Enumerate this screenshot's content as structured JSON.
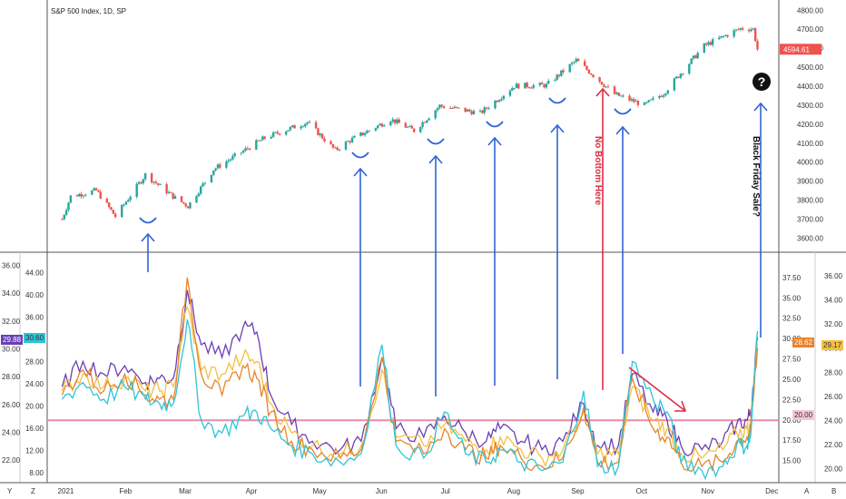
{
  "chart_data": [
    {
      "type": "candlestick",
      "title": "S&P 500 Index, 1D, SP",
      "y_ticks": [
        "4800.00",
        "4700.00",
        "4600.00",
        "4500.00",
        "4400.00",
        "4300.00",
        "4200.00",
        "4100.00",
        "4000.00",
        "3900.00",
        "3800.00",
        "3700.00",
        "3600.00"
      ],
      "ylim": [
        3540,
        4830
      ],
      "x_ticks": [
        "2021",
        "Feb",
        "Mar",
        "Apr",
        "May",
        "Jun",
        "Jul",
        "Aug",
        "Sep",
        "Oct",
        "Nov",
        "Dec"
      ],
      "last_price": "4594.61",
      "up_color": "#26a69a",
      "down_color": "#ef5350",
      "anchors": [
        [
          "2021-01-04",
          3700
        ],
        [
          "2021-01-08",
          3820
        ],
        [
          "2021-01-20",
          3851
        ],
        [
          "2021-01-29",
          3714
        ],
        [
          "2021-02-12",
          3934
        ],
        [
          "2021-02-26",
          3811
        ],
        [
          "2021-03-04",
          3768
        ],
        [
          "2021-03-16",
          3962
        ],
        [
          "2021-04-09",
          4128
        ],
        [
          "2021-04-29",
          4211
        ],
        [
          "2021-05-12",
          4063
        ],
        [
          "2021-05-19",
          4115
        ],
        [
          "2021-06-07",
          4226
        ],
        [
          "2021-06-18",
          4166
        ],
        [
          "2021-06-30",
          4297
        ],
        [
          "2021-07-19",
          4258
        ],
        [
          "2021-08-04",
          4402
        ],
        [
          "2021-08-19",
          4405
        ],
        [
          "2021-09-02",
          4536
        ],
        [
          "2021-09-10",
          4458
        ],
        [
          "2021-09-20",
          4358
        ],
        [
          "2021-10-04",
          4300
        ],
        [
          "2021-10-13",
          4363
        ],
        [
          "2021-11-01",
          4613
        ],
        [
          "2021-11-18",
          4704
        ],
        [
          "2021-11-24",
          4701
        ],
        [
          "2021-11-26",
          4594.61
        ]
      ]
    },
    {
      "type": "line",
      "title": "",
      "y_ticks_left_outer": [
        "36.00",
        "34.00",
        "32.00",
        "30.00",
        "28.00",
        "26.00",
        "24.00",
        "22.00"
      ],
      "y_ticks_left_inner": [
        "44.00",
        "40.00",
        "36.00",
        "32.00",
        "28.00",
        "24.00",
        "20.00",
        "16.00",
        "12.00",
        "8.00"
      ],
      "y_ticks_right_inner": [
        "37.50",
        "35.00",
        "32.50",
        "30.00",
        "27.50",
        "25.00",
        "22.50",
        "20.00",
        "17.50",
        "15.00"
      ],
      "y_ticks_right_outer": [
        "36.00",
        "34.00",
        "32.00",
        "30.00",
        "28.00",
        "26.00",
        "24.00",
        "22.00",
        "20.00"
      ],
      "ylim": [
        13,
        38.5
      ],
      "reference_line": 20,
      "reference_color": "#e88aa8",
      "value_tags": {
        "left_purple": "29.88",
        "left_teal": "30.60",
        "right_orange": "28.62",
        "right_yellow": "29.17",
        "right_ref": "20.00"
      },
      "series": [
        {
          "color": "#6a3fb5",
          "values": [
            [
              0,
              24
            ],
            [
              0.03,
              27
            ],
            [
              0.06,
              25.5
            ],
            [
              0.09,
              26.5
            ],
            [
              0.12,
              24.5
            ],
            [
              0.14,
              25
            ],
            [
              0.16,
              25
            ],
            [
              0.18,
              35.5
            ],
            [
              0.2,
              29
            ],
            [
              0.23,
              27.5
            ],
            [
              0.26,
              31
            ],
            [
              0.28,
              30.5
            ],
            [
              0.3,
              23
            ],
            [
              0.33,
              19.5
            ],
            [
              0.36,
              17.5
            ],
            [
              0.4,
              16.5
            ],
            [
              0.43,
              17.5
            ],
            [
              0.46,
              27.5
            ],
            [
              0.48,
              19
            ],
            [
              0.52,
              18
            ],
            [
              0.55,
              20.5
            ],
            [
              0.58,
              18.5
            ],
            [
              0.61,
              17.5
            ],
            [
              0.63,
              19
            ],
            [
              0.66,
              17.5
            ],
            [
              0.69,
              16.5
            ],
            [
              0.72,
              17.5
            ],
            [
              0.75,
              22
            ],
            [
              0.77,
              17
            ],
            [
              0.8,
              17
            ],
            [
              0.82,
              25.5
            ],
            [
              0.85,
              21
            ],
            [
              0.87,
              20
            ],
            [
              0.89,
              17
            ],
            [
              0.92,
              16.5
            ],
            [
              0.95,
              17.5
            ],
            [
              0.97,
              19.5
            ],
            [
              0.985,
              20
            ],
            [
              0.99,
              21
            ],
            [
              1,
              29.9
            ]
          ]
        },
        {
          "color": "#f5c040",
          "values": [
            [
              0,
              23.5
            ],
            [
              0.03,
              25.5
            ],
            [
              0.06,
              24
            ],
            [
              0.09,
              25
            ],
            [
              0.12,
              23.5
            ],
            [
              0.14,
              23.5
            ],
            [
              0.16,
              24
            ],
            [
              0.18,
              33.5
            ],
            [
              0.2,
              26
            ],
            [
              0.23,
              25.5
            ],
            [
              0.26,
              27.5
            ],
            [
              0.28,
              27
            ],
            [
              0.3,
              22
            ],
            [
              0.33,
              18.5
            ],
            [
              0.36,
              17
            ],
            [
              0.4,
              16
            ],
            [
              0.43,
              17
            ],
            [
              0.46,
              26
            ],
            [
              0.48,
              18
            ],
            [
              0.52,
              17
            ],
            [
              0.55,
              19.5
            ],
            [
              0.58,
              17.5
            ],
            [
              0.61,
              16.5
            ],
            [
              0.63,
              18
            ],
            [
              0.66,
              16.5
            ],
            [
              0.69,
              15.5
            ],
            [
              0.72,
              16.5
            ],
            [
              0.75,
              21
            ],
            [
              0.77,
              16
            ],
            [
              0.8,
              16
            ],
            [
              0.82,
              24
            ],
            [
              0.85,
              20
            ],
            [
              0.87,
              19
            ],
            [
              0.89,
              16
            ],
            [
              0.92,
              15.5
            ],
            [
              0.95,
              16.5
            ],
            [
              0.97,
              18.5
            ],
            [
              0.985,
              19
            ],
            [
              0.99,
              19.5
            ],
            [
              1,
              29.17
            ]
          ]
        },
        {
          "color": "#e8832a",
          "values": [
            [
              0,
              23
            ],
            [
              0.03,
              26
            ],
            [
              0.06,
              23.5
            ],
            [
              0.09,
              25.5
            ],
            [
              0.12,
              23
            ],
            [
              0.14,
              22.5
            ],
            [
              0.16,
              22.5
            ],
            [
              0.18,
              37
            ],
            [
              0.2,
              25.5
            ],
            [
              0.23,
              23
            ],
            [
              0.26,
              26.5
            ],
            [
              0.28,
              25
            ],
            [
              0.3,
              21
            ],
            [
              0.33,
              17.5
            ],
            [
              0.36,
              16.5
            ],
            [
              0.4,
              15.5
            ],
            [
              0.43,
              16.5
            ],
            [
              0.46,
              27.5
            ],
            [
              0.48,
              17.5
            ],
            [
              0.52,
              16
            ],
            [
              0.55,
              19
            ],
            [
              0.58,
              16.5
            ],
            [
              0.61,
              15.5
            ],
            [
              0.63,
              17
            ],
            [
              0.66,
              15.5
            ],
            [
              0.69,
              14.5
            ],
            [
              0.72,
              15.5
            ],
            [
              0.75,
              21.5
            ],
            [
              0.77,
              15
            ],
            [
              0.8,
              15
            ],
            [
              0.82,
              25
            ],
            [
              0.85,
              19
            ],
            [
              0.87,
              18
            ],
            [
              0.89,
              15
            ],
            [
              0.92,
              14.5
            ],
            [
              0.95,
              15
            ],
            [
              0.97,
              17.5
            ],
            [
              0.985,
              18
            ],
            [
              0.99,
              18.5
            ],
            [
              1,
              28.62
            ]
          ]
        },
        {
          "color": "#2ec4d6",
          "values": [
            [
              0,
              22.5
            ],
            [
              0.03,
              24.5
            ],
            [
              0.06,
              22.5
            ],
            [
              0.09,
              24
            ],
            [
              0.12,
              22.5
            ],
            [
              0.14,
              22
            ],
            [
              0.16,
              22
            ],
            [
              0.18,
              32
            ],
            [
              0.2,
              20
            ],
            [
              0.23,
              18.5
            ],
            [
              0.26,
              20.5
            ],
            [
              0.28,
              21
            ],
            [
              0.3,
              19
            ],
            [
              0.33,
              17
            ],
            [
              0.36,
              16
            ],
            [
              0.4,
              15
            ],
            [
              0.43,
              16
            ],
            [
              0.46,
              29
            ],
            [
              0.48,
              17
            ],
            [
              0.52,
              15.5
            ],
            [
              0.55,
              21
            ],
            [
              0.58,
              16
            ],
            [
              0.61,
              15
            ],
            [
              0.63,
              16.5
            ],
            [
              0.66,
              15
            ],
            [
              0.69,
              14
            ],
            [
              0.72,
              15
            ],
            [
              0.75,
              23.5
            ],
            [
              0.77,
              14.5
            ],
            [
              0.8,
              14.5
            ],
            [
              0.82,
              27
            ],
            [
              0.85,
              22.5
            ],
            [
              0.87,
              21
            ],
            [
              0.89,
              15
            ],
            [
              0.92,
              14
            ],
            [
              0.95,
              14.5
            ],
            [
              0.97,
              17
            ],
            [
              0.985,
              17
            ],
            [
              0.99,
              18
            ],
            [
              1,
              30.6
            ]
          ]
        }
      ]
    }
  ],
  "annotations": {
    "no_bottom": "No Bottom Here",
    "black_friday": "Black Friday Sale?",
    "question_mark": "?"
  },
  "axis_corner": {
    "left_bottom": [
      "Y",
      "Z"
    ],
    "right_bottom": [
      "A",
      "B"
    ]
  },
  "colors": {
    "arrow_blue": "#2f64d6",
    "arrow_red": "#e02c44"
  }
}
